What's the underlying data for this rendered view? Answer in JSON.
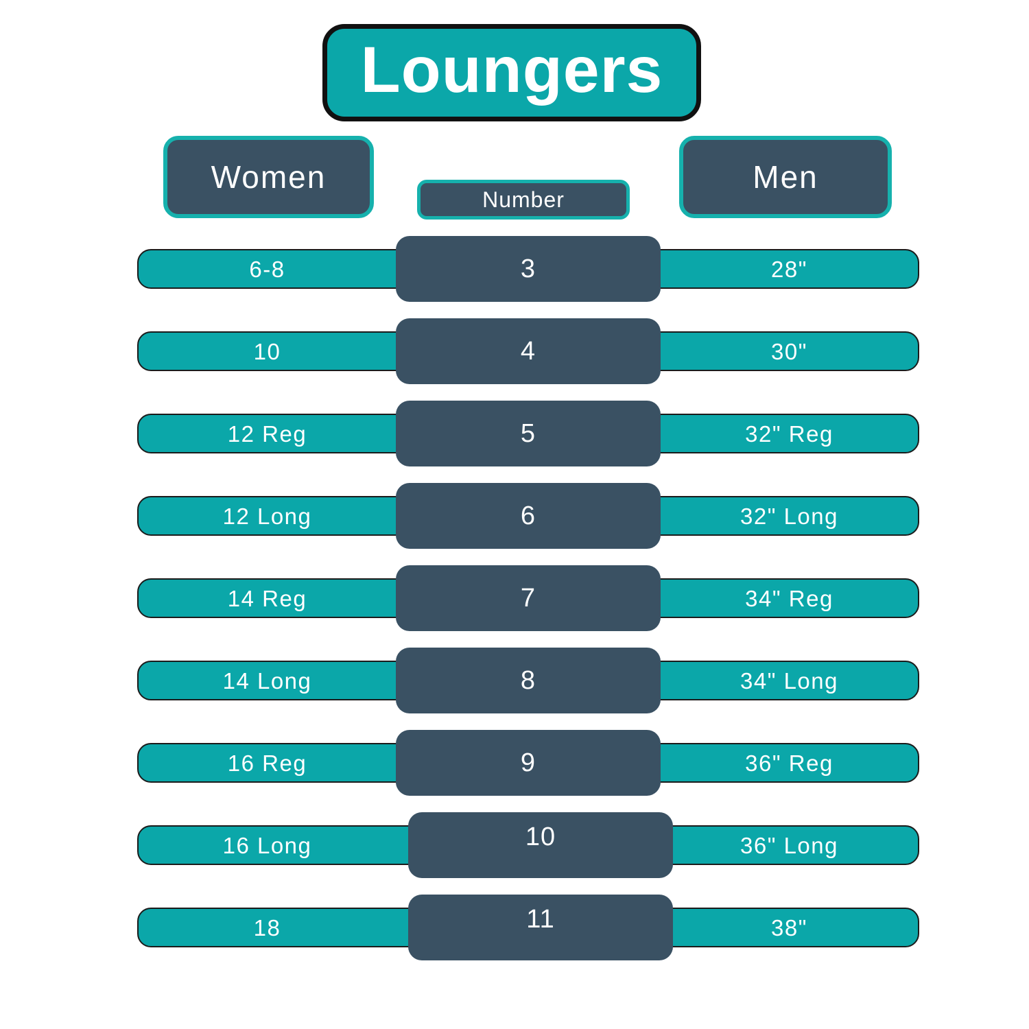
{
  "title": "Loungers",
  "headers": {
    "women": "Women",
    "number": "Number",
    "men": "Men"
  },
  "rows": [
    {
      "women": "6-8",
      "number": "3",
      "men": "28\""
    },
    {
      "women": "10",
      "number": "4",
      "men": "30\""
    },
    {
      "women": "12 Reg",
      "number": "5",
      "men": "32\" Reg"
    },
    {
      "women": "12 Long",
      "number": "6",
      "men": "32\" Long"
    },
    {
      "women": "14 Reg",
      "number": "7",
      "men": "34\" Reg"
    },
    {
      "women": "14 Long",
      "number": "8",
      "men": "34\" Long"
    },
    {
      "women": "16 Reg",
      "number": "9",
      "men": "36\" Reg"
    },
    {
      "women": "16 Long",
      "number": "10",
      "men": "36\" Long"
    },
    {
      "women": "18",
      "number": "11",
      "men": "38\""
    }
  ],
  "chart_data": {
    "type": "table",
    "title": "Loungers",
    "columns": [
      "Women",
      "Number",
      "Men"
    ],
    "rows": [
      [
        "6-8",
        "3",
        "28\""
      ],
      [
        "10",
        "4",
        "30\""
      ],
      [
        "12 Reg",
        "5",
        "32\" Reg"
      ],
      [
        "12 Long",
        "6",
        "32\" Long"
      ],
      [
        "14 Reg",
        "7",
        "34\" Reg"
      ],
      [
        "14 Long",
        "8",
        "34\" Long"
      ],
      [
        "16 Reg",
        "9",
        "36\" Reg"
      ],
      [
        "16 Long",
        "10",
        "36\" Long"
      ],
      [
        "18",
        "11",
        "38\""
      ]
    ]
  },
  "colors": {
    "teal": "#0ba7a9",
    "slate": "#3a5163",
    "header_border_teal": "#16b1ad",
    "title_border": "#111111",
    "bar_outline": "#1b1b1b",
    "text": "#ffffff"
  }
}
